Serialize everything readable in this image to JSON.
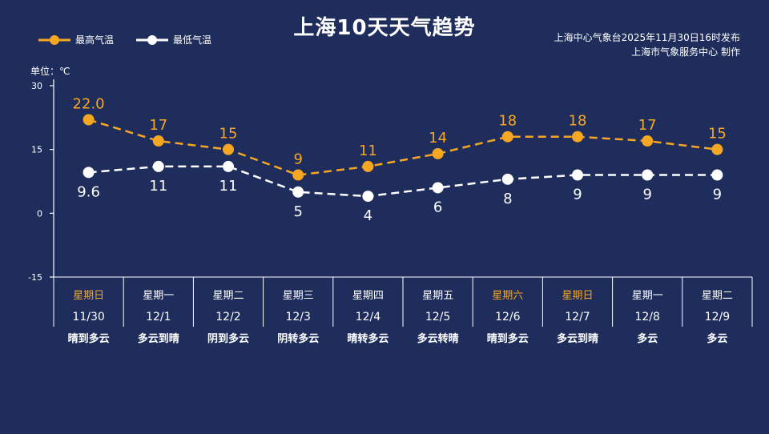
{
  "header": {
    "title": "上海10天天气趋势",
    "issuer_line1": "上海中心气象台2025年11月30日16时发布",
    "issuer_line2": "上海市气象服务中心  制作"
  },
  "chart_data": {
    "type": "line",
    "title": "上海10天天气趋势",
    "ylabel": "单位：℃",
    "ylim": [
      -15,
      30
    ],
    "yticks": [
      30,
      15,
      0,
      -15
    ],
    "grid": false,
    "legend_position": "top-left",
    "categories": [
      "11/30",
      "12/1",
      "12/2",
      "12/3",
      "12/4",
      "12/5",
      "12/6",
      "12/7",
      "12/8",
      "12/9"
    ],
    "weekdays": [
      "星期日",
      "星期一",
      "星期二",
      "星期三",
      "星期四",
      "星期五",
      "星期六",
      "星期日",
      "星期一",
      "星期二"
    ],
    "weekend_flags": [
      true,
      false,
      false,
      false,
      false,
      false,
      true,
      true,
      false,
      false
    ],
    "weather": [
      "晴到多云",
      "多云到晴",
      "阴到多云",
      "阴转多云",
      "晴转多云",
      "多云转晴",
      "晴到多云",
      "多云到晴",
      "多云",
      "多云"
    ],
    "series": [
      {
        "name": "最高气温",
        "color": "#f5a623",
        "values": [
          22.0,
          17,
          15,
          9,
          11,
          14,
          18,
          18,
          17,
          15
        ],
        "labels": [
          "22.0",
          "17",
          "15",
          "9",
          "11",
          "14",
          "18",
          "18",
          "17",
          "15"
        ]
      },
      {
        "name": "最低气温",
        "color": "#ffffff",
        "values": [
          9.6,
          11,
          11,
          5,
          4,
          6,
          8,
          9,
          9,
          9
        ],
        "labels": [
          "9.6",
          "11",
          "11",
          "5",
          "4",
          "6",
          "8",
          "9",
          "9",
          "9"
        ]
      }
    ],
    "colors": {
      "background": "#1f2d5c",
      "high": "#f5a623",
      "low": "#ffffff",
      "weekend": "#f5a623",
      "axis": "#ffffff"
    }
  }
}
